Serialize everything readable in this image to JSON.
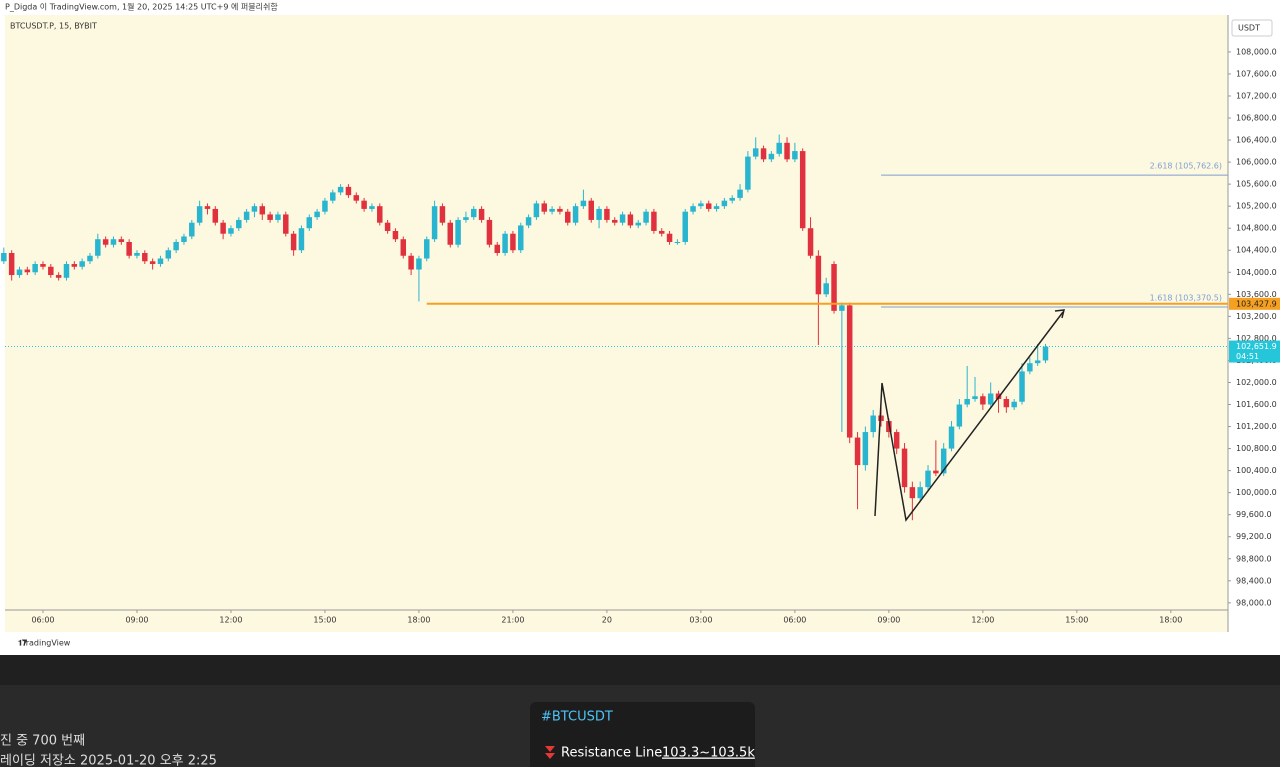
{
  "header": {
    "byline": "P_Digda 이 TradingView.com, 1월 20, 2025 14:25 UTC+9 에 퍼블리쉬함"
  },
  "chart_data": {
    "type": "candlestick",
    "symbol": "BTCUSDT.P, 15, BYBIT",
    "currency": "USDT",
    "brand": "TradingView",
    "up_color": "#29b5cf",
    "down_color": "#e0323e",
    "candles": [
      [
        104200,
        104450,
        104150,
        104350
      ],
      [
        104350,
        104400,
        103850,
        103950
      ],
      [
        103950,
        104100,
        103900,
        104050
      ],
      [
        104050,
        104100,
        103950,
        104000
      ],
      [
        104000,
        104200,
        103950,
        104150
      ],
      [
        104150,
        104200,
        104050,
        104100
      ],
      [
        104100,
        104150,
        103900,
        103950
      ],
      [
        103950,
        104000,
        103850,
        103900
      ],
      [
        103900,
        104200,
        103850,
        104150
      ],
      [
        104150,
        104200,
        104050,
        104100
      ],
      [
        104100,
        104250,
        104050,
        104200
      ],
      [
        104200,
        104350,
        104150,
        104300
      ],
      [
        104300,
        104700,
        104250,
        104600
      ],
      [
        104600,
        104650,
        104450,
        104500
      ],
      [
        104500,
        104650,
        104450,
        104600
      ],
      [
        104600,
        104650,
        104500,
        104550
      ],
      [
        104550,
        104600,
        104250,
        104300
      ],
      [
        104300,
        104400,
        104250,
        104350
      ],
      [
        104350,
        104400,
        104150,
        104200
      ],
      [
        104200,
        104250,
        104050,
        104150
      ],
      [
        104150,
        104300,
        104100,
        104250
      ],
      [
        104250,
        104450,
        104200,
        104400
      ],
      [
        104400,
        104600,
        104350,
        104550
      ],
      [
        104550,
        104700,
        104500,
        104650
      ],
      [
        104650,
        104950,
        104600,
        104900
      ],
      [
        104900,
        105300,
        104850,
        105200
      ],
      [
        105200,
        105250,
        105050,
        105150
      ],
      [
        105150,
        105200,
        104850,
        104900
      ],
      [
        104900,
        104950,
        104600,
        104700
      ],
      [
        104700,
        104850,
        104650,
        104800
      ],
      [
        104800,
        105000,
        104750,
        104950
      ],
      [
        104950,
        105150,
        104900,
        105100
      ],
      [
        105100,
        105250,
        105000,
        105200
      ],
      [
        105200,
        105250,
        104950,
        105050
      ],
      [
        105050,
        105100,
        104900,
        104950
      ],
      [
        104950,
        105100,
        104900,
        105050
      ],
      [
        105050,
        105100,
        104650,
        104700
      ],
      [
        104700,
        104750,
        104300,
        104400
      ],
      [
        104400,
        104850,
        104350,
        104800
      ],
      [
        104800,
        105050,
        104750,
        105000
      ],
      [
        105000,
        105150,
        104950,
        105100
      ],
      [
        105100,
        105350,
        105050,
        105300
      ],
      [
        105300,
        105500,
        105250,
        105450
      ],
      [
        105450,
        105600,
        105400,
        105550
      ],
      [
        105550,
        105600,
        105350,
        105400
      ],
      [
        105400,
        105450,
        105250,
        105300
      ],
      [
        105300,
        105350,
        105100,
        105150
      ],
      [
        105150,
        105250,
        105100,
        105200
      ],
      [
        105200,
        105250,
        104850,
        104900
      ],
      [
        104900,
        104950,
        104700,
        104750
      ],
      [
        104750,
        104800,
        104550,
        104600
      ],
      [
        104600,
        104650,
        104250,
        104300
      ],
      [
        104300,
        104350,
        103950,
        104050
      ],
      [
        104050,
        104300,
        103470,
        104250
      ],
      [
        104250,
        104650,
        104200,
        104600
      ],
      [
        104600,
        105300,
        104550,
        105200
      ],
      [
        105200,
        105250,
        104850,
        104900
      ],
      [
        104900,
        104950,
        104450,
        104500
      ],
      [
        104500,
        105000,
        104450,
        104950
      ],
      [
        104950,
        105100,
        104900,
        105000
      ],
      [
        105000,
        105200,
        104950,
        105150
      ],
      [
        105150,
        105200,
        104900,
        104950
      ],
      [
        104950,
        105000,
        104450,
        104500
      ],
      [
        104500,
        104550,
        104300,
        104350
      ],
      [
        104350,
        104750,
        104300,
        104700
      ],
      [
        104700,
        104750,
        104350,
        104400
      ],
      [
        104400,
        104900,
        104350,
        104850
      ],
      [
        104850,
        105050,
        104800,
        105000
      ],
      [
        105000,
        105300,
        104950,
        105250
      ],
      [
        105250,
        105300,
        105050,
        105100
      ],
      [
        105100,
        105200,
        105050,
        105150
      ],
      [
        105150,
        105200,
        105050,
        105100
      ],
      [
        105100,
        105150,
        104850,
        104900
      ],
      [
        104900,
        105250,
        104850,
        105200
      ],
      [
        105200,
        105500,
        105150,
        105300
      ],
      [
        105300,
        105350,
        104900,
        104950
      ],
      [
        104950,
        105200,
        104800,
        105150
      ],
      [
        105150,
        105200,
        104900,
        104950
      ],
      [
        104950,
        105000,
        104850,
        104900
      ],
      [
        104900,
        105100,
        104850,
        105050
      ],
      [
        105050,
        105100,
        104800,
        104850
      ],
      [
        104850,
        104950,
        104800,
        104900
      ],
      [
        104900,
        105150,
        104850,
        105100
      ],
      [
        105100,
        105150,
        104700,
        104750
      ],
      [
        104750,
        104800,
        104650,
        104700
      ],
      [
        104700,
        104750,
        104500,
        104550
      ],
      [
        104550,
        104600,
        104500,
        104550
      ],
      [
        104550,
        105150,
        104500,
        105100
      ],
      [
        105100,
        105250,
        105050,
        105200
      ],
      [
        105200,
        105300,
        105150,
        105250
      ],
      [
        105250,
        105300,
        105100,
        105150
      ],
      [
        105150,
        105250,
        105100,
        105200
      ],
      [
        105200,
        105350,
        105150,
        105300
      ],
      [
        105300,
        105400,
        105250,
        105350
      ],
      [
        105350,
        105600,
        105300,
        105500
      ],
      [
        105500,
        106200,
        105450,
        106100
      ],
      [
        106100,
        106450,
        106050,
        106250
      ],
      [
        106250,
        106300,
        106000,
        106050
      ],
      [
        106050,
        106200,
        106000,
        106150
      ],
      [
        106150,
        106500,
        106100,
        106350
      ],
      [
        106350,
        106450,
        106000,
        106050
      ],
      [
        106050,
        106350,
        106000,
        106200
      ],
      [
        106200,
        106250,
        104750,
        104800
      ],
      [
        104800,
        105000,
        104250,
        104300
      ],
      [
        104300,
        104400,
        102680,
        103600
      ],
      [
        103600,
        103900,
        103550,
        103800
      ],
      [
        104150,
        104200,
        103250,
        103300
      ],
      [
        103300,
        103450,
        101100,
        103400
      ],
      [
        103400,
        103450,
        100900,
        101000
      ],
      [
        101000,
        101100,
        99700,
        100500
      ],
      [
        100500,
        101200,
        100400,
        101100
      ],
      [
        101100,
        101500,
        101000,
        101400
      ],
      [
        101400,
        101650,
        101200,
        101300
      ],
      [
        101300,
        101350,
        101000,
        101100
      ],
      [
        101100,
        101150,
        100700,
        100800
      ],
      [
        100800,
        100900,
        100000,
        100100
      ],
      [
        100100,
        100200,
        99500,
        99900
      ],
      [
        99900,
        100200,
        99850,
        100100
      ],
      [
        100100,
        100500,
        100050,
        100400
      ],
      [
        100400,
        100950,
        100300,
        100350
      ],
      [
        100350,
        100900,
        100300,
        100800
      ],
      [
        100800,
        101300,
        100750,
        101200
      ],
      [
        101200,
        101700,
        101150,
        101600
      ],
      [
        101600,
        102300,
        101550,
        101700
      ],
      [
        101700,
        102100,
        101650,
        101750
      ],
      [
        101750,
        101800,
        101500,
        101600
      ],
      [
        101600,
        102000,
        101550,
        101800
      ],
      [
        101800,
        101850,
        101450,
        101700
      ],
      [
        101700,
        101750,
        101450,
        101550
      ],
      [
        101550,
        101700,
        101500,
        101650
      ],
      [
        101650,
        102350,
        101600,
        102200
      ],
      [
        102200,
        102450,
        102150,
        102350
      ],
      [
        102350,
        102700,
        102300,
        102400
      ],
      [
        102400,
        102700,
        102350,
        102650
      ]
    ],
    "xlim": [
      0.15,
      156.3
    ],
    "xticks": [
      {
        "value": 5,
        "label": "06:00"
      },
      {
        "value": 17,
        "label": "09:00"
      },
      {
        "value": 29,
        "label": "12:00"
      },
      {
        "value": 41,
        "label": "15:00"
      },
      {
        "value": 53,
        "label": "18:00"
      },
      {
        "value": 65,
        "label": "21:00"
      },
      {
        "value": 77,
        "label": "20"
      },
      {
        "value": 89,
        "label": "03:00"
      },
      {
        "value": 101,
        "label": "06:00"
      },
      {
        "value": 113,
        "label": "09:00"
      },
      {
        "value": 125,
        "label": "12:00"
      },
      {
        "value": 137,
        "label": "15:00"
      },
      {
        "value": 149,
        "label": "18:00"
      }
    ],
    "ylim": [
      97870,
      108670
    ],
    "yticks": [
      {
        "value": 98000,
        "label": "98,000.0"
      },
      {
        "value": 98400,
        "label": "98,400.0"
      },
      {
        "value": 98800,
        "label": "98,800.0"
      },
      {
        "value": 99200,
        "label": "99,200.0"
      },
      {
        "value": 99600,
        "label": "99,600.0"
      },
      {
        "value": 100000,
        "label": "100,000.0"
      },
      {
        "value": 100400,
        "label": "100,400.0"
      },
      {
        "value": 100800,
        "label": "100,800.0"
      },
      {
        "value": 101200,
        "label": "101,200.0"
      },
      {
        "value": 101600,
        "label": "101,600.0"
      },
      {
        "value": 102000,
        "label": "102,000.0"
      },
      {
        "value": 102400,
        "label": "102,400.0"
      },
      {
        "value": 102800,
        "label": "102,800.0"
      },
      {
        "value": 103200,
        "label": "103,200.0"
      },
      {
        "value": 103600,
        "label": "103,600.0"
      },
      {
        "value": 104000,
        "label": "104,000.0"
      },
      {
        "value": 104400,
        "label": "104,400.0"
      },
      {
        "value": 104800,
        "label": "104,800.0"
      },
      {
        "value": 105200,
        "label": "105,200.0"
      },
      {
        "value": 105600,
        "label": "105,600.0"
      },
      {
        "value": 106000,
        "label": "106,000.0"
      },
      {
        "value": 106400,
        "label": "106,400.0"
      },
      {
        "value": 106800,
        "label": "106,800.0"
      },
      {
        "value": 107200,
        "label": "107,200.0"
      },
      {
        "value": 107600,
        "label": "107,600.0"
      },
      {
        "value": 108000,
        "label": "108,000.0"
      }
    ],
    "levels": [
      {
        "value": 103427.9,
        "label": "103,427.9",
        "color": "#f5a020",
        "from": 54,
        "axis_label": true
      },
      {
        "value": 105762.6,
        "label": "2.618 (105,762.6)",
        "color": "#7e9fd2",
        "from": 112,
        "axis_label": false
      },
      {
        "value": 103370.5,
        "label": "1.618 (103,370.5)",
        "color": "#7e9fd2",
        "from": 112,
        "axis_label": false
      }
    ],
    "last_price": {
      "value": 102651.9,
      "label": "102,651.9",
      "countdown": "04:51",
      "color": "#26c6da"
    }
  },
  "footer": {
    "line1": "진 중  700 번째",
    "line2": "레이딩 저장소   2025-01-20  오후 2:25",
    "popup": {
      "tag": "#BTCUSDT",
      "text": "Resistance Line",
      "link": "103.3~103.5k"
    }
  }
}
